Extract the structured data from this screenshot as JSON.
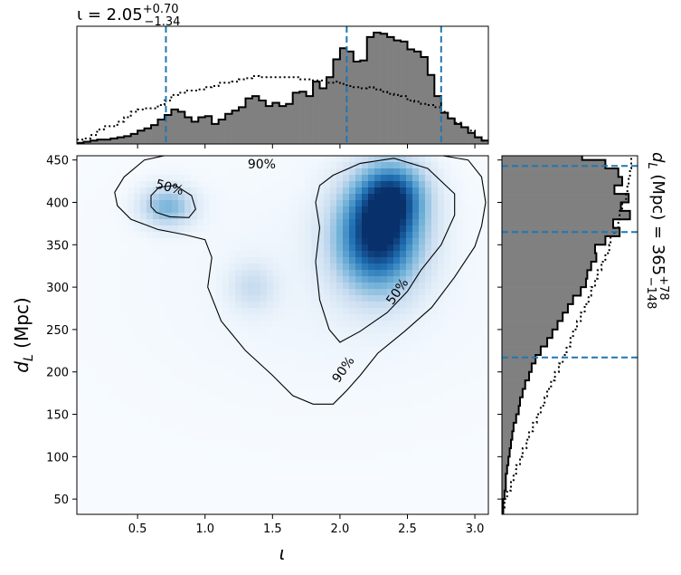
{
  "chart_data": [
    {
      "type": "heatmap",
      "title": "",
      "xlabel": "ι",
      "ylabel": "d_L (Mpc)",
      "xlim": [
        0.05,
        3.1
      ],
      "ylim": [
        32,
        455
      ],
      "xticks": [
        0.5,
        1.0,
        1.5,
        2.0,
        2.5,
        3.0
      ],
      "xtick_labels": [
        "0.5",
        "1.0",
        "1.5",
        "2.0",
        "2.5",
        "3.0"
      ],
      "yticks": [
        50,
        100,
        150,
        200,
        250,
        300,
        350,
        400,
        450
      ],
      "ytick_labels": [
        "50",
        "100",
        "150",
        "200",
        "250",
        "300",
        "350",
        "400",
        "450"
      ],
      "colormap": "Blues",
      "density_peaks": [
        {
          "x": 2.28,
          "y": 360,
          "weight": 1.0
        },
        {
          "x": 2.4,
          "y": 410,
          "weight": 0.6
        },
        {
          "x": 0.72,
          "y": 395,
          "weight": 0.45
        },
        {
          "x": 1.35,
          "y": 300,
          "weight": 0.2
        }
      ],
      "contours": [
        {
          "label": "50%",
          "level": 0.5
        },
        {
          "label": "90%",
          "level": 0.9
        }
      ]
    },
    {
      "type": "histogram",
      "orientation": "vertical",
      "variable": "ι",
      "xlim": [
        0.05,
        3.1
      ],
      "bin_edges": [
        0.05,
        0.1,
        0.15,
        0.2,
        0.25,
        0.3,
        0.35,
        0.4,
        0.45,
        0.5,
        0.55,
        0.6,
        0.65,
        0.7,
        0.75,
        0.8,
        0.85,
        0.9,
        0.95,
        1.0,
        1.05,
        1.1,
        1.15,
        1.2,
        1.25,
        1.3,
        1.35,
        1.4,
        1.45,
        1.5,
        1.55,
        1.6,
        1.65,
        1.7,
        1.75,
        1.8,
        1.85,
        1.9,
        1.95,
        2.0,
        2.05,
        2.1,
        2.15,
        2.2,
        2.25,
        2.3,
        2.35,
        2.4,
        2.45,
        2.5,
        2.55,
        2.6,
        2.65,
        2.7,
        2.75,
        2.8,
        2.85,
        2.9,
        2.95,
        3.0,
        3.05,
        3.1
      ],
      "posterior": [
        0.01,
        0.02,
        0.03,
        0.04,
        0.04,
        0.05,
        0.06,
        0.07,
        0.09,
        0.12,
        0.14,
        0.17,
        0.22,
        0.26,
        0.31,
        0.29,
        0.24,
        0.2,
        0.24,
        0.25,
        0.18,
        0.22,
        0.27,
        0.3,
        0.33,
        0.41,
        0.43,
        0.39,
        0.34,
        0.37,
        0.34,
        0.36,
        0.46,
        0.47,
        0.43,
        0.56,
        0.5,
        0.6,
        0.76,
        0.86,
        0.83,
        0.74,
        0.75,
        0.96,
        1.0,
        0.99,
        0.96,
        0.93,
        0.92,
        0.85,
        0.83,
        0.78,
        0.62,
        0.43,
        0.28,
        0.23,
        0.18,
        0.15,
        0.1,
        0.06,
        0.03
      ],
      "prior": [
        0.04,
        0.05,
        0.08,
        0.13,
        0.16,
        0.16,
        0.2,
        0.24,
        0.29,
        0.31,
        0.32,
        0.32,
        0.35,
        0.39,
        0.44,
        0.46,
        0.48,
        0.48,
        0.49,
        0.51,
        0.52,
        0.55,
        0.55,
        0.56,
        0.58,
        0.59,
        0.61,
        0.6,
        0.6,
        0.6,
        0.6,
        0.6,
        0.6,
        0.58,
        0.58,
        0.57,
        0.57,
        0.55,
        0.56,
        0.54,
        0.52,
        0.51,
        0.5,
        0.51,
        0.49,
        0.47,
        0.45,
        0.44,
        0.43,
        0.39,
        0.38,
        0.36,
        0.35,
        0.33,
        0.29,
        0.23,
        0.19,
        0.15,
        0.12,
        0.06,
        0.03
      ],
      "quantile_lines": [
        0.71,
        2.05,
        2.75
      ],
      "median": 2.05,
      "plus": 0.7,
      "minus": 1.34,
      "title_main": "ι = 2.05",
      "title_sup": "+0.70",
      "title_sub": "−1.34"
    },
    {
      "type": "histogram",
      "orientation": "horizontal",
      "variable": "d_L (Mpc)",
      "ylim": [
        32,
        455
      ],
      "bin_edges": [
        30,
        40,
        50,
        60,
        70,
        80,
        90,
        100,
        110,
        120,
        130,
        140,
        150,
        160,
        170,
        180,
        190,
        200,
        210,
        220,
        230,
        240,
        250,
        260,
        270,
        280,
        290,
        300,
        310,
        320,
        330,
        340,
        350,
        360,
        370,
        380,
        390,
        400,
        410,
        420,
        430,
        440,
        450,
        460
      ],
      "posterior": [
        0.01,
        0.01,
        0.02,
        0.03,
        0.03,
        0.04,
        0.05,
        0.06,
        0.07,
        0.08,
        0.09,
        0.11,
        0.13,
        0.14,
        0.16,
        0.18,
        0.21,
        0.23,
        0.26,
        0.3,
        0.35,
        0.39,
        0.43,
        0.47,
        0.51,
        0.55,
        0.61,
        0.65,
        0.66,
        0.69,
        0.73,
        0.72,
        0.8,
        0.91,
        0.86,
        0.99,
        0.92,
        0.98,
        0.87,
        0.93,
        0.9,
        0.8,
        0.62
      ],
      "prior": [
        0.01,
        0.02,
        0.04,
        0.07,
        0.09,
        0.11,
        0.14,
        0.16,
        0.19,
        0.21,
        0.24,
        0.27,
        0.3,
        0.33,
        0.35,
        0.38,
        0.41,
        0.44,
        0.47,
        0.5,
        0.53,
        0.55,
        0.58,
        0.61,
        0.64,
        0.67,
        0.69,
        0.72,
        0.74,
        0.77,
        0.8,
        0.83,
        0.84,
        0.87,
        0.9,
        0.91,
        0.93,
        0.96,
        0.97,
        0.98,
        0.99,
        1.0,
        1.0
      ],
      "quantile_lines": [
        217,
        365,
        443
      ],
      "median": 365,
      "plus": 78,
      "minus": 148,
      "title_main": "d_L (Mpc) = 365",
      "title_sup": "+78",
      "title_sub": "−148"
    }
  ],
  "colors": {
    "hist_fill": "#808080",
    "hist_edge": "#000000",
    "quantile_line": "#1f77b4",
    "contour": "#000000"
  }
}
